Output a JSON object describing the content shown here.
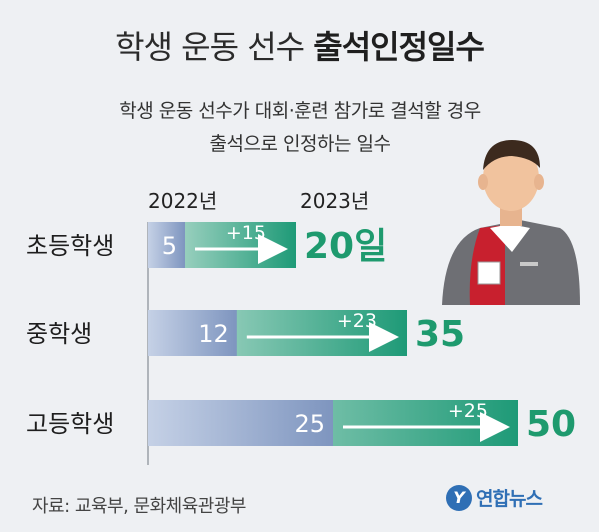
{
  "header": {
    "title_plain": "학생 운동 선수",
    "title_bold": "출석인정일수",
    "subtitle_line1": "학생 운동 선수가 대회·훈련 참가로 결석할 경우",
    "subtitle_line2": "출석으로 인정하는 일수"
  },
  "chart_data": {
    "type": "bar",
    "categories": [
      "초등학생",
      "중학생",
      "고등학생"
    ],
    "series": [
      {
        "name": "2022년",
        "values": [
          5,
          12,
          25
        ]
      },
      {
        "name": "2023년",
        "values": [
          20,
          35,
          50
        ]
      }
    ],
    "increase_labels": [
      "+15",
      "+23",
      "+25"
    ],
    "total_labels": [
      "20일",
      "35",
      "50"
    ],
    "legend": [
      "2022년",
      "2023년"
    ],
    "colors": {
      "bar_2022": "#8fa4c8",
      "bar_2023": "#2a9f82",
      "total_text": "#1e9a6e"
    }
  },
  "footer": {
    "source": "자료: 교육부, 문화체육관광부",
    "logo_text": "연합뉴스",
    "logo_mark": "Y"
  },
  "illustration": {
    "icon": "student-athlete-icon"
  }
}
